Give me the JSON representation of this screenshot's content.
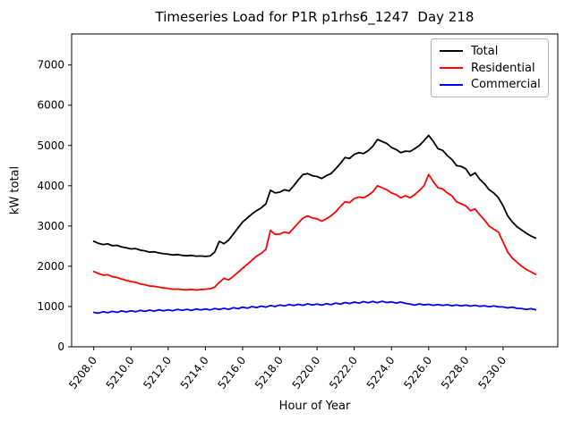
{
  "chart_data": {
    "type": "line",
    "title": "Timeseries Load for P1R p1rhs6_1247  Day 218",
    "xlabel": "Hour of Year",
    "ylabel": "kW total",
    "grid": false,
    "legend_position": "upper right",
    "xlim": [
      5206.81,
      5232.94
    ],
    "ylim": [
      0,
      7770
    ],
    "x": {
      "start": 5208.0,
      "step": 0.25,
      "count": 96
    },
    "x_ticks": {
      "values": [
        5208,
        5210,
        5212,
        5214,
        5216,
        5218,
        5220,
        5222,
        5224,
        5226,
        5228,
        5230
      ],
      "labels": [
        "5208.0",
        "5210.0",
        "5212.0",
        "5214.0",
        "5216.0",
        "5218.0",
        "5220.0",
        "5222.0",
        "5224.0",
        "5226.0",
        "5228.0",
        "5230.0"
      ]
    },
    "y_ticks": {
      "values": [
        0,
        1000,
        2000,
        3000,
        4000,
        5000,
        6000,
        7000
      ],
      "labels": [
        "0",
        "1000",
        "2000",
        "3000",
        "4000",
        "5000",
        "6000",
        "7000"
      ]
    },
    "series": [
      {
        "name": "Total",
        "color": "#000000",
        "values": [
          2620,
          2570,
          2540,
          2555,
          2510,
          2520,
          2480,
          2460,
          2430,
          2440,
          2400,
          2380,
          2350,
          2360,
          2330,
          2310,
          2300,
          2280,
          2290,
          2270,
          2260,
          2270,
          2250,
          2255,
          2245,
          2255,
          2350,
          2620,
          2560,
          2650,
          2800,
          2950,
          3100,
          3200,
          3300,
          3380,
          3450,
          3550,
          3890,
          3820,
          3840,
          3900,
          3870,
          4000,
          4150,
          4280,
          4300,
          4250,
          4230,
          4180,
          4250,
          4300,
          4420,
          4550,
          4700,
          4680,
          4780,
          4820,
          4800,
          4870,
          4980,
          5150,
          5100,
          5050,
          4950,
          4900,
          4820,
          4860,
          4850,
          4920,
          5000,
          5120,
          5250,
          5100,
          4920,
          4880,
          4750,
          4650,
          4500,
          4480,
          4420,
          4250,
          4320,
          4160,
          4050,
          3900,
          3820,
          3700,
          3500,
          3250,
          3100,
          2980,
          2900,
          2820,
          2750,
          2700
        ]
      },
      {
        "name": "Residential",
        "color": "#ff0000",
        "values": [
          1870,
          1820,
          1780,
          1790,
          1740,
          1720,
          1680,
          1650,
          1620,
          1600,
          1560,
          1540,
          1510,
          1500,
          1480,
          1460,
          1450,
          1430,
          1435,
          1420,
          1415,
          1425,
          1410,
          1420,
          1430,
          1440,
          1480,
          1600,
          1700,
          1660,
          1750,
          1850,
          1950,
          2050,
          2150,
          2250,
          2320,
          2420,
          2890,
          2790,
          2800,
          2850,
          2820,
          2950,
          3080,
          3200,
          3250,
          3200,
          3180,
          3120,
          3180,
          3250,
          3350,
          3480,
          3600,
          3580,
          3680,
          3720,
          3700,
          3760,
          3850,
          4000,
          3950,
          3900,
          3820,
          3780,
          3700,
          3750,
          3700,
          3780,
          3880,
          4000,
          4280,
          4100,
          3950,
          3920,
          3820,
          3750,
          3600,
          3550,
          3500,
          3380,
          3420,
          3280,
          3150,
          3000,
          2920,
          2850,
          2600,
          2350,
          2200,
          2100,
          2000,
          1920,
          1860,
          1800
        ]
      },
      {
        "name": "Commercial",
        "color": "#0000ff",
        "values": [
          855,
          835,
          870,
          845,
          880,
          855,
          890,
          865,
          895,
          870,
          905,
          880,
          910,
          885,
          920,
          895,
          920,
          895,
          930,
          905,
          930,
          905,
          940,
          915,
          940,
          915,
          950,
          925,
          955,
          930,
          970,
          945,
          985,
          960,
          1000,
          975,
          1010,
          985,
          1025,
          1000,
          1040,
          1015,
          1050,
          1025,
          1055,
          1030,
          1065,
          1040,
          1060,
          1035,
          1070,
          1045,
          1085,
          1060,
          1100,
          1075,
          1110,
          1085,
          1120,
          1095,
          1125,
          1095,
          1130,
          1100,
          1115,
          1085,
          1110,
          1080,
          1060,
          1035,
          1065,
          1040,
          1055,
          1030,
          1050,
          1025,
          1045,
          1020,
          1040,
          1015,
          1035,
          1010,
          1030,
          1005,
          1020,
          995,
          1015,
          990,
          990,
          965,
          985,
          955,
          950,
          925,
          945,
          920
        ]
      }
    ]
  }
}
